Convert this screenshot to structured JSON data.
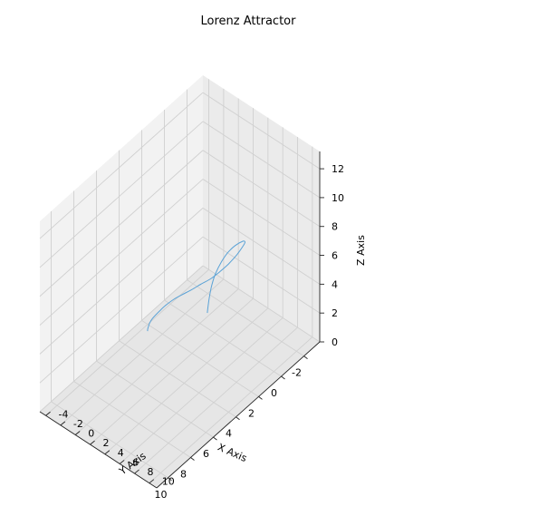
{
  "chart_data": {
    "type": "line",
    "title": "Lorenz Attractor",
    "xlabel": "X Axis",
    "ylabel": "Y Axis",
    "zlabel": "Z Axis",
    "xlim": [
      -3.4,
      11.0
    ],
    "ylim": [
      -4.8,
      11.0
    ],
    "zlim": [
      0,
      13.2
    ],
    "xticks": [
      -2,
      0,
      2,
      4,
      6,
      8,
      10
    ],
    "yticks": [
      -4,
      -2,
      0,
      2,
      4,
      6,
      8,
      10
    ],
    "zticks": [
      0,
      2,
      4,
      6,
      8,
      10,
      12
    ],
    "grid": true,
    "series": [
      {
        "color": "#5aa2d6",
        "points": [
          [
            0.0,
            1.0,
            1.05
          ],
          [
            -0.12,
            0.93,
            1.45
          ],
          [
            -0.28,
            0.88,
            2.0
          ],
          [
            -0.5,
            0.85,
            2.6
          ],
          [
            -0.8,
            0.9,
            3.2
          ],
          [
            -1.2,
            1.05,
            3.75
          ],
          [
            -1.6,
            1.3,
            4.2
          ],
          [
            -2.0,
            1.7,
            4.55
          ],
          [
            -2.4,
            2.1,
            4.7
          ],
          [
            -2.45,
            2.35,
            4.7
          ],
          [
            -2.2,
            2.45,
            4.62
          ],
          [
            -1.5,
            2.7,
            4.6
          ],
          [
            -0.5,
            3.1,
            4.8
          ],
          [
            0.6,
            3.6,
            5.2
          ],
          [
            1.8,
            4.2,
            5.75
          ],
          [
            3.0,
            4.8,
            6.45
          ],
          [
            4.3,
            5.5,
            7.2
          ],
          [
            5.6,
            6.2,
            8.0
          ],
          [
            6.8,
            6.9,
            8.75
          ],
          [
            8.0,
            7.6,
            9.4
          ],
          [
            9.0,
            8.2,
            9.85
          ],
          [
            9.8,
            8.6,
            10.1
          ],
          [
            10.2,
            8.8,
            10.1
          ],
          [
            10.45,
            8.95,
            9.95
          ],
          [
            10.5,
            9.0,
            9.85
          ]
        ]
      }
    ]
  }
}
